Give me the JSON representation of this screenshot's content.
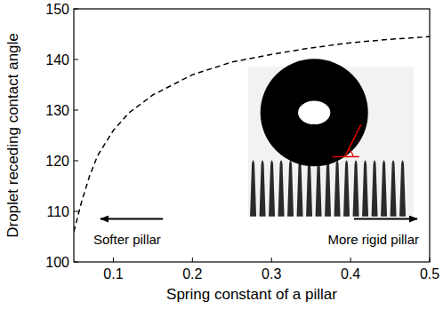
{
  "chart_data": {
    "type": "line",
    "x_label": "Spring constant of a pillar",
    "y_label": "Droplet receding contact angle",
    "x": [
      0.05,
      0.06,
      0.07,
      0.08,
      0.1,
      0.12,
      0.15,
      0.2,
      0.25,
      0.3,
      0.35,
      0.4,
      0.45,
      0.5
    ],
    "values": [
      106,
      112,
      117,
      121,
      126,
      129.5,
      133,
      137,
      139.5,
      141,
      142.3,
      143.3,
      144,
      144.5
    ],
    "color": "#000000",
    "line_style": "dashed",
    "xlim": [
      0.05,
      0.5
    ],
    "xticks": [
      0.1,
      0.2,
      0.3,
      0.4,
      0.5
    ],
    "ylim": [
      100,
      150
    ],
    "yticks": [
      100,
      110,
      120,
      130,
      140,
      150
    ],
    "grid": false,
    "annotations": [
      {
        "text": "Softer pillar",
        "direction": "left"
      },
      {
        "text": "More rigid pillar",
        "direction": "right"
      }
    ]
  }
}
